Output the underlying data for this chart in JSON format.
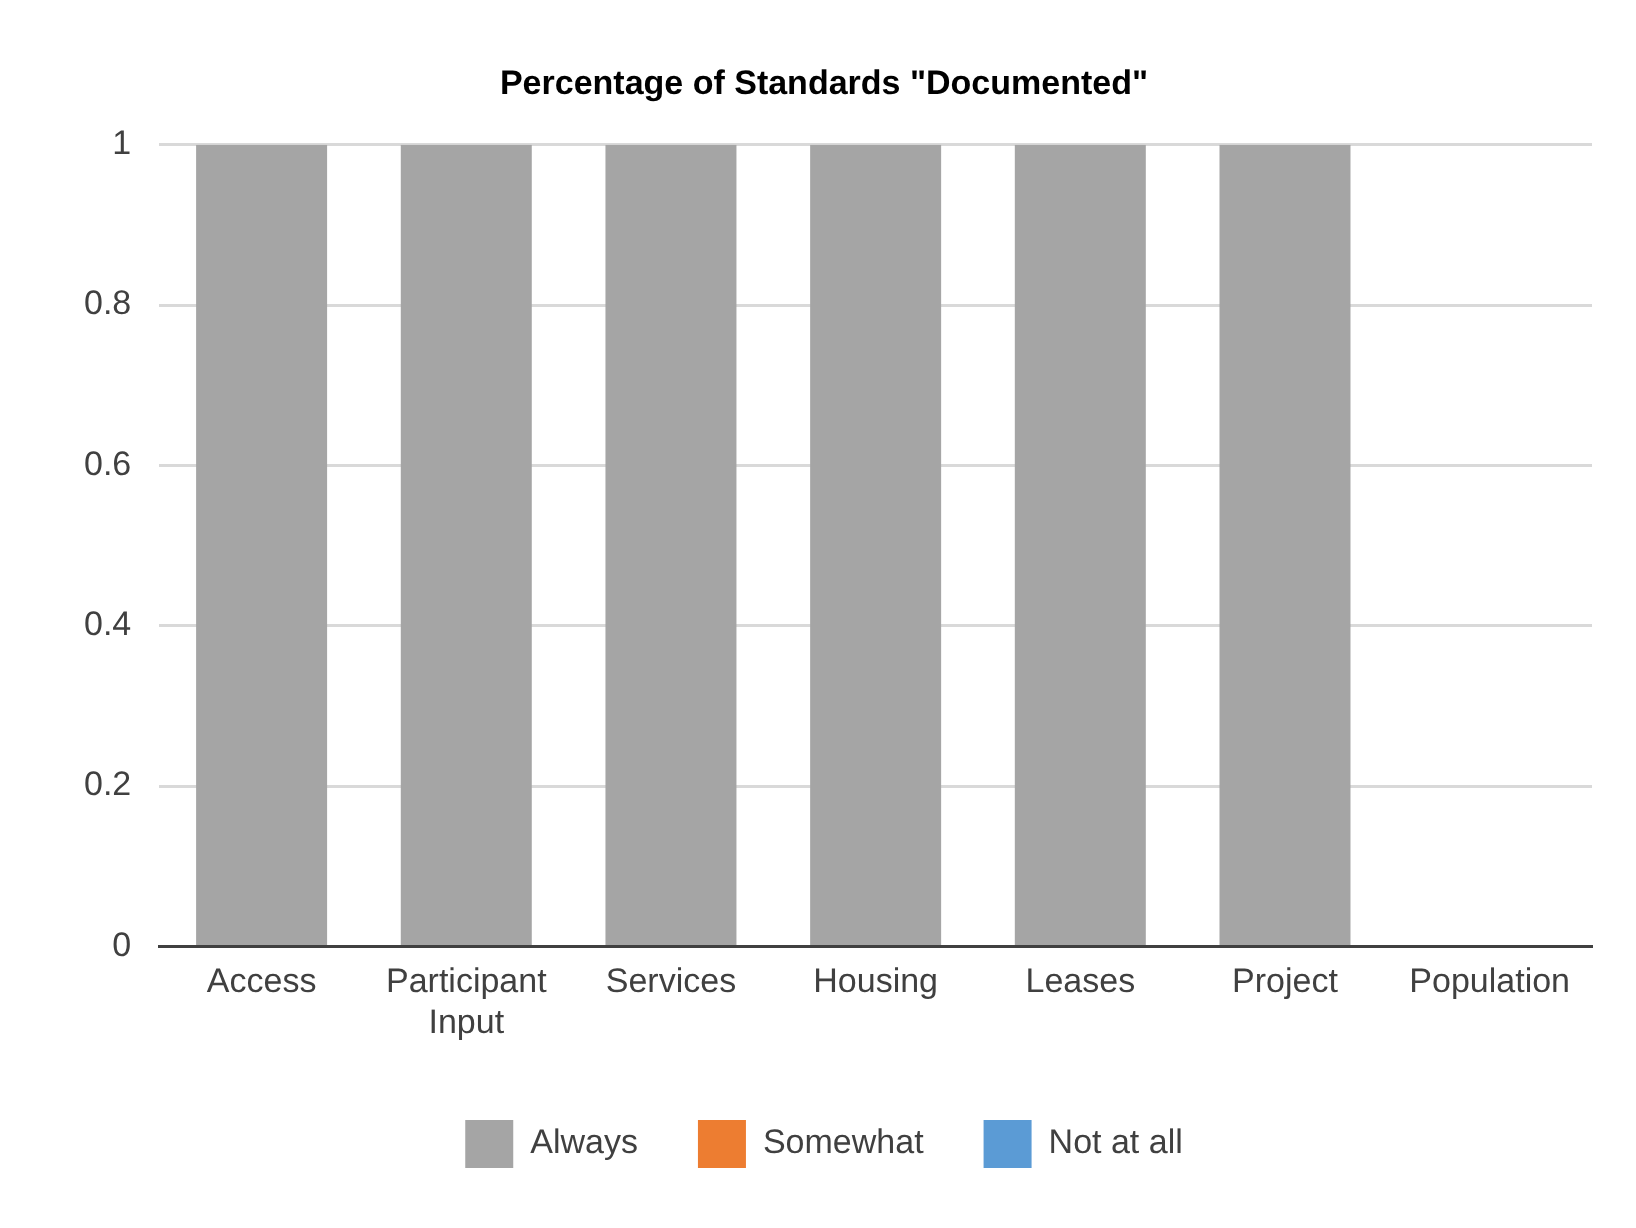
{
  "chart_data": {
    "type": "bar",
    "title": "Percentage of Standards \"Documented\"",
    "categories": [
      "Access",
      "Participant Input",
      "Services",
      "Housing",
      "Leases",
      "Project",
      "Population"
    ],
    "stacked": true,
    "series": [
      {
        "name": "Always",
        "color": "#a5a5a5",
        "values": [
          1,
          1,
          1,
          1,
          1,
          1,
          0
        ]
      },
      {
        "name": "Somewhat",
        "color": "#ed7d31",
        "values": [
          0,
          0,
          0,
          0,
          0,
          0,
          0
        ]
      },
      {
        "name": "Not at all",
        "color": "#5b9bd5",
        "values": [
          0,
          0,
          0,
          0,
          0,
          0,
          0
        ]
      }
    ],
    "ylim": [
      0,
      1
    ],
    "yticks": [
      0,
      0.2,
      0.4,
      0.6,
      0.8,
      1
    ],
    "grid": "y",
    "legend": "bottom"
  }
}
